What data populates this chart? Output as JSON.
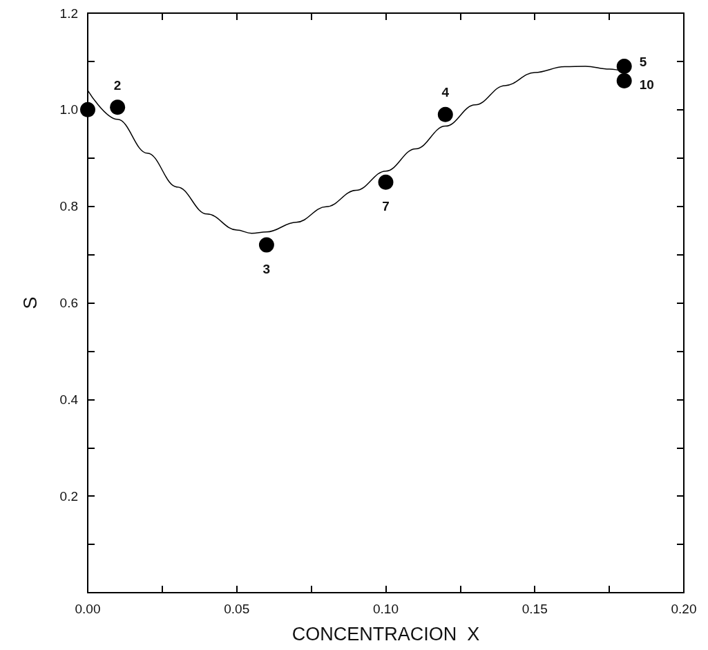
{
  "chart_data": {
    "type": "scatter",
    "xlabel": "CONCENTRACION  X",
    "ylabel": "S",
    "xlim": [
      0,
      0.2
    ],
    "ylim": [
      0,
      1.2
    ],
    "xticks": [
      {
        "value": 0,
        "label": "0.00"
      },
      {
        "value": 0.025,
        "label": null
      },
      {
        "value": 0.05,
        "label": "0.05"
      },
      {
        "value": 0.075,
        "label": null
      },
      {
        "value": 0.1,
        "label": "0.10"
      },
      {
        "value": 0.125,
        "label": null
      },
      {
        "value": 0.15,
        "label": "0.15"
      },
      {
        "value": 0.175,
        "label": null
      },
      {
        "value": 0.2,
        "label": "0.20"
      }
    ],
    "yticks": [
      {
        "value": 0,
        "label": null
      },
      {
        "value": 0.1,
        "label": null
      },
      0.2,
      {
        "value": 0.3,
        "label": null
      },
      0.4,
      {
        "value": 0.5,
        "label": null
      },
      0.6,
      {
        "value": 0.7,
        "label": null
      },
      0.8,
      {
        "value": 0.9,
        "label": null
      },
      {
        "value": 1.0,
        "label": "1.0"
      },
      {
        "value": 1.1,
        "label": null
      },
      1.2
    ],
    "grid": false,
    "annotations": [
      {
        "text": "2",
        "x": 0.01,
        "y": 1.005
      },
      {
        "text": "3",
        "x": 0.06,
        "y": 0.72
      },
      {
        "text": "7",
        "x": 0.1,
        "y": 0.85
      },
      {
        "text": "4",
        "x": 0.12,
        "y": 0.99
      },
      {
        "text": "5",
        "x": 0.18,
        "y": 1.09
      },
      {
        "text": "10",
        "x": 0.18,
        "y": 1.06
      }
    ],
    "series": [
      {
        "type": "line",
        "color": "#000000",
        "marker": "none",
        "line_style": "solid",
        "x": [
          0,
          0.01,
          0.02,
          0.03,
          0.04,
          0.05,
          0.055,
          0.06,
          0.07,
          0.08,
          0.09,
          0.1,
          0.11,
          0.12,
          0.13,
          0.14,
          0.15,
          0.16,
          0.167,
          0.175,
          0.18
        ],
        "values": [
          1.04,
          0.98,
          0.91,
          0.84,
          0.784,
          0.751,
          0.744,
          0.747,
          0.767,
          0.799,
          0.833,
          0.873,
          0.919,
          0.966,
          1.01,
          1.05,
          1.077,
          1.089,
          1.09,
          1.084,
          1.079
        ]
      },
      {
        "color": "#000000",
        "marker": "circle",
        "x": [
          0,
          0.01,
          0.06,
          0.1,
          0.12,
          0.18,
          0.18
        ],
        "values": [
          1.0,
          1.005,
          0.72,
          0.85,
          0.99,
          1.09,
          1.06
        ]
      }
    ]
  }
}
